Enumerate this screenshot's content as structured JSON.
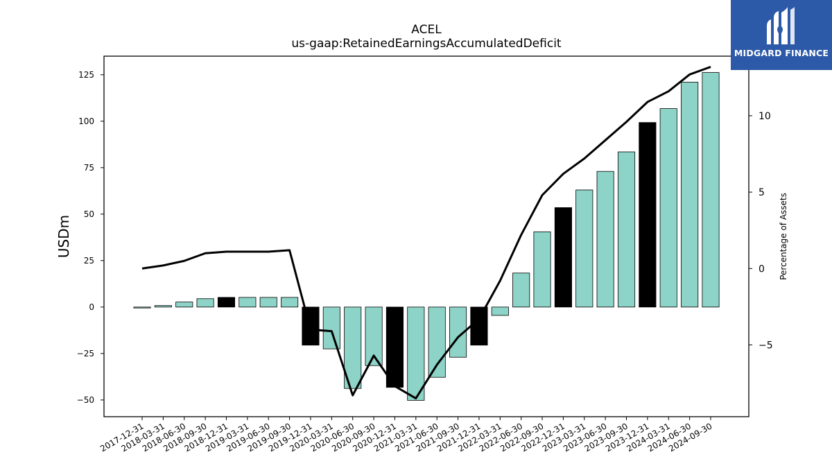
{
  "chart_data": {
    "type": "bar",
    "title": "ACEL",
    "subtitle": "us-gaap:RetainedEarningsAccumulatedDeficit",
    "ylabel": "USDm",
    "y2label": "Percentage of Assets",
    "ylim": [
      -59,
      135
    ],
    "y2lim": [
      -9.7,
      13.9
    ],
    "yticks": [
      -50,
      -25,
      0,
      25,
      50,
      75,
      100,
      125
    ],
    "yticklabels": [
      "−50",
      "−25",
      "0",
      "25",
      "50",
      "75",
      "100",
      "125"
    ],
    "y2ticks": [
      -5,
      0,
      5,
      10
    ],
    "y2ticklabels": [
      "−5",
      "0",
      "5",
      "10"
    ],
    "categories": [
      "2017-12-31",
      "2018-03-31",
      "2018-06-30",
      "2018-09-30",
      "2018-12-31",
      "2019-03-31",
      "2019-06-30",
      "2019-09-30",
      "2019-12-31",
      "2020-03-31",
      "2020-06-30",
      "2020-09-30",
      "2020-12-31",
      "2021-03-31",
      "2021-06-30",
      "2021-09-30",
      "2021-12-31",
      "2022-03-31",
      "2022-06-30",
      "2022-09-30",
      "2022-12-31",
      "2023-03-31",
      "2023-06-30",
      "2023-09-30",
      "2023-12-31",
      "2024-03-31",
      "2024-06-30",
      "2024-09-30"
    ],
    "values": [
      -0.5,
      0.8,
      2.7,
      4.5,
      5.2,
      5.2,
      5.2,
      5.2,
      -20.5,
      -22.5,
      -43.8,
      -31.5,
      -43.2,
      -50.2,
      -37.8,
      -27.0,
      -20.5,
      -4.5,
      18.3,
      40.5,
      53.5,
      63.0,
      73.0,
      83.5,
      99.3,
      106.8,
      121.0,
      126.2
    ],
    "highlight": [
      false,
      false,
      false,
      false,
      true,
      false,
      false,
      false,
      true,
      false,
      false,
      false,
      true,
      false,
      false,
      false,
      true,
      false,
      false,
      false,
      true,
      false,
      false,
      false,
      true,
      false,
      false,
      false
    ],
    "series": [
      {
        "name": "",
        "axis": "right",
        "type": "line",
        "values": [
          0.0,
          0.2,
          0.5,
          1.0,
          1.1,
          1.1,
          1.1,
          1.2,
          -4.0,
          -4.1,
          -8.3,
          -5.7,
          -7.7,
          -8.5,
          -6.3,
          -4.5,
          -3.3,
          -0.8,
          2.2,
          4.8,
          6.2,
          7.2,
          8.4,
          9.6,
          10.9,
          11.6,
          12.7,
          13.2
        ]
      }
    ],
    "colors": {
      "bar": "#8dd3c7",
      "highlight": "#000000",
      "line": "#000000",
      "edge": "#000000"
    },
    "grid": false
  },
  "logo": {
    "text": "MIDGARD FINANCE"
  }
}
